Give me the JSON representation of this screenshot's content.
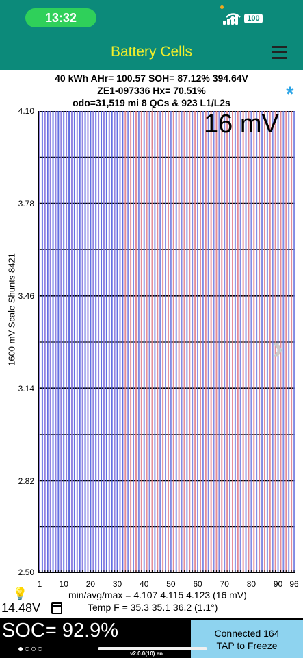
{
  "status_bar": {
    "time": "13:32",
    "battery": "100"
  },
  "app": {
    "title": "Battery Cells"
  },
  "header": {
    "line1": "40 kWh  AHr= 100.57  SOH= 87.12%   394.64V",
    "line2": "ZE1-097336   Hx= 70.51%",
    "line3": "odo=31,519 mi 8 QCs & 923 L1/L2s"
  },
  "chart_data": {
    "type": "bar",
    "cell_count": 96,
    "ylabel": "1600 mV Scale   Shunts 8421",
    "ylim": [
      2.5,
      4.1
    ],
    "y_ticks": [
      "4.10",
      "3.78",
      "3.46",
      "3.14",
      "2.82",
      "2.50"
    ],
    "x_ticks": [
      1,
      10,
      20,
      30,
      40,
      50,
      60,
      70,
      80,
      90,
      96
    ],
    "min": 4.107,
    "avg": 4.115,
    "max": 4.123,
    "spread_label": "16 mV",
    "shunt_highlight_range": [
      1,
      32
    ],
    "colors": {
      "odd": "#e07a86",
      "even": "#6c78e0",
      "shunt_odd": "#7f6ddc",
      "shunt_even": "#4857de"
    }
  },
  "footer": {
    "aux_voltage": "14.48V",
    "stats_line": "min/avg/max = 4.107 4.115 4.123  (16 mV)",
    "temp_line": "Temp F = 35.3  35.1  36.2  (1.1°)",
    "soc": "SOC= 92.9%",
    "page_dots": "●○○○",
    "connection": "Connected 164",
    "freeze_hint": "TAP to Freeze",
    "version": "v2.0.0(10) en"
  }
}
